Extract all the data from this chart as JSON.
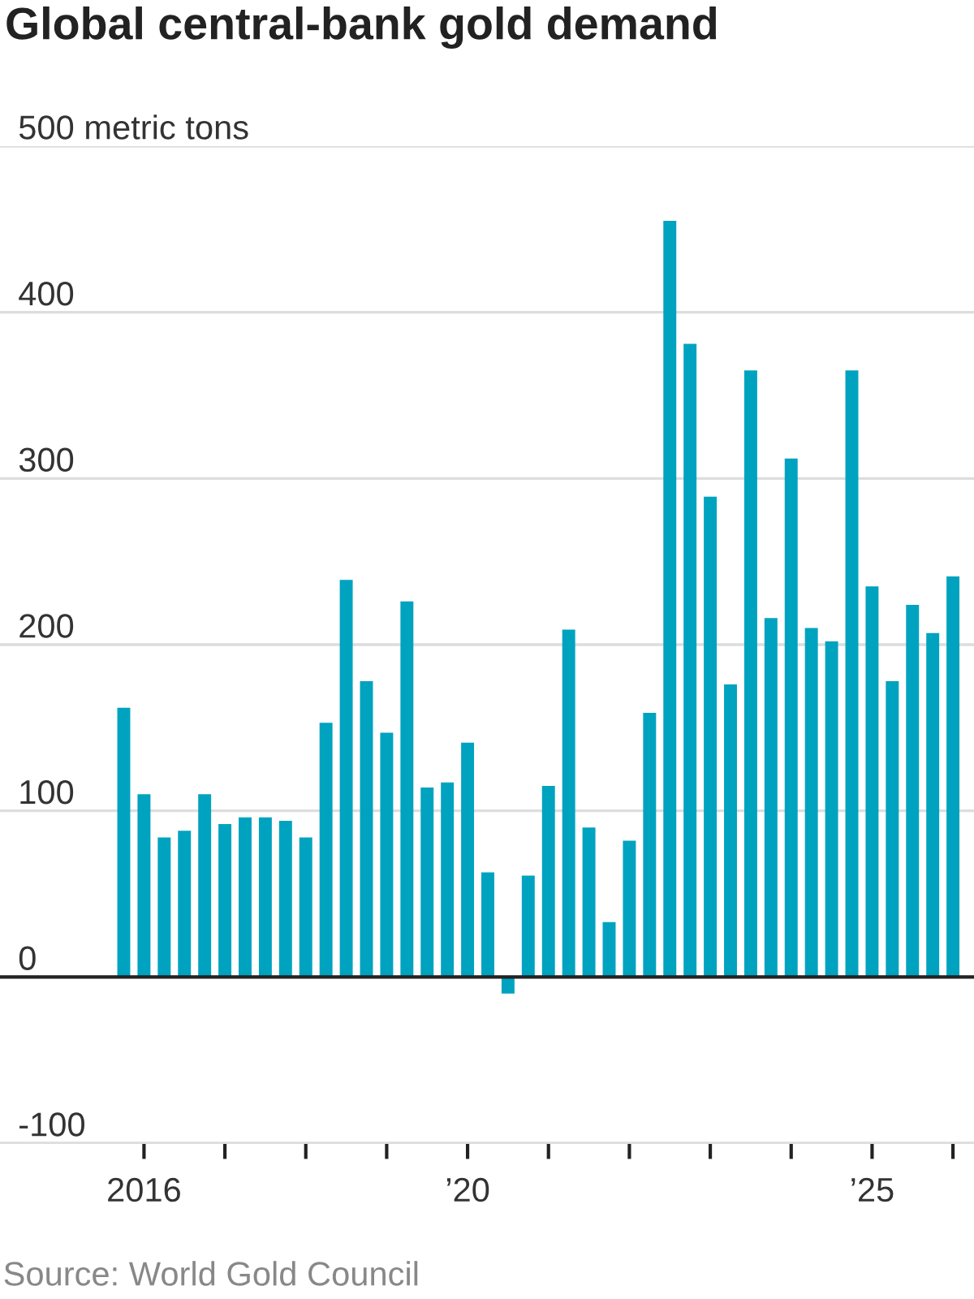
{
  "chart_data": {
    "type": "bar",
    "title": "Global central-bank gold demand",
    "x": [
      2015.75,
      2016,
      2016.25,
      2016.5,
      2016.75,
      2017,
      2017.25,
      2017.5,
      2017.75,
      2018,
      2018.25,
      2018.5,
      2018.75,
      2019,
      2019.25,
      2019.5,
      2019.75,
      2020,
      2020.25,
      2020.5,
      2020.75,
      2021,
      2021.25,
      2021.5,
      2021.75,
      2022,
      2022.25,
      2022.5,
      2022.75,
      2023,
      2023.25,
      2023.5,
      2023.75,
      2024,
      2024.25,
      2024.5,
      2024.75,
      2025,
      2025.25,
      2025.5,
      2025.75,
      2026
    ],
    "values": [
      162,
      110,
      84,
      88,
      110,
      92,
      96,
      96,
      94,
      84,
      153,
      239,
      178,
      147,
      226,
      114,
      117,
      141,
      63,
      -10,
      61,
      115,
      209,
      90,
      33,
      82,
      159,
      455,
      381,
      289,
      176,
      365,
      216,
      312,
      210,
      202,
      365,
      235,
      178,
      224,
      207,
      241
    ],
    "color": "#00a3bf",
    "xlim": [
      2014.22,
      2026.26
    ],
    "xticks": [
      {
        "value": 2016,
        "label": "2016"
      },
      {
        "value": 2017,
        "label": null
      },
      {
        "value": 2018,
        "label": null
      },
      {
        "value": 2019,
        "label": null
      },
      {
        "value": 2020,
        "label": "’20"
      },
      {
        "value": 2021,
        "label": null
      },
      {
        "value": 2022,
        "label": null
      },
      {
        "value": 2023,
        "label": null
      },
      {
        "value": 2024,
        "label": null
      },
      {
        "value": 2025,
        "label": "’25"
      },
      {
        "value": 2026,
        "label": null
      }
    ],
    "ylim": [
      -100,
      500
    ],
    "yticks": [
      -100,
      0,
      100,
      200,
      300,
      400,
      {
        "value": 500,
        "label": "500 metric tons"
      }
    ],
    "grid": "y",
    "annotations": [
      "Source: World Gold Council"
    ]
  }
}
